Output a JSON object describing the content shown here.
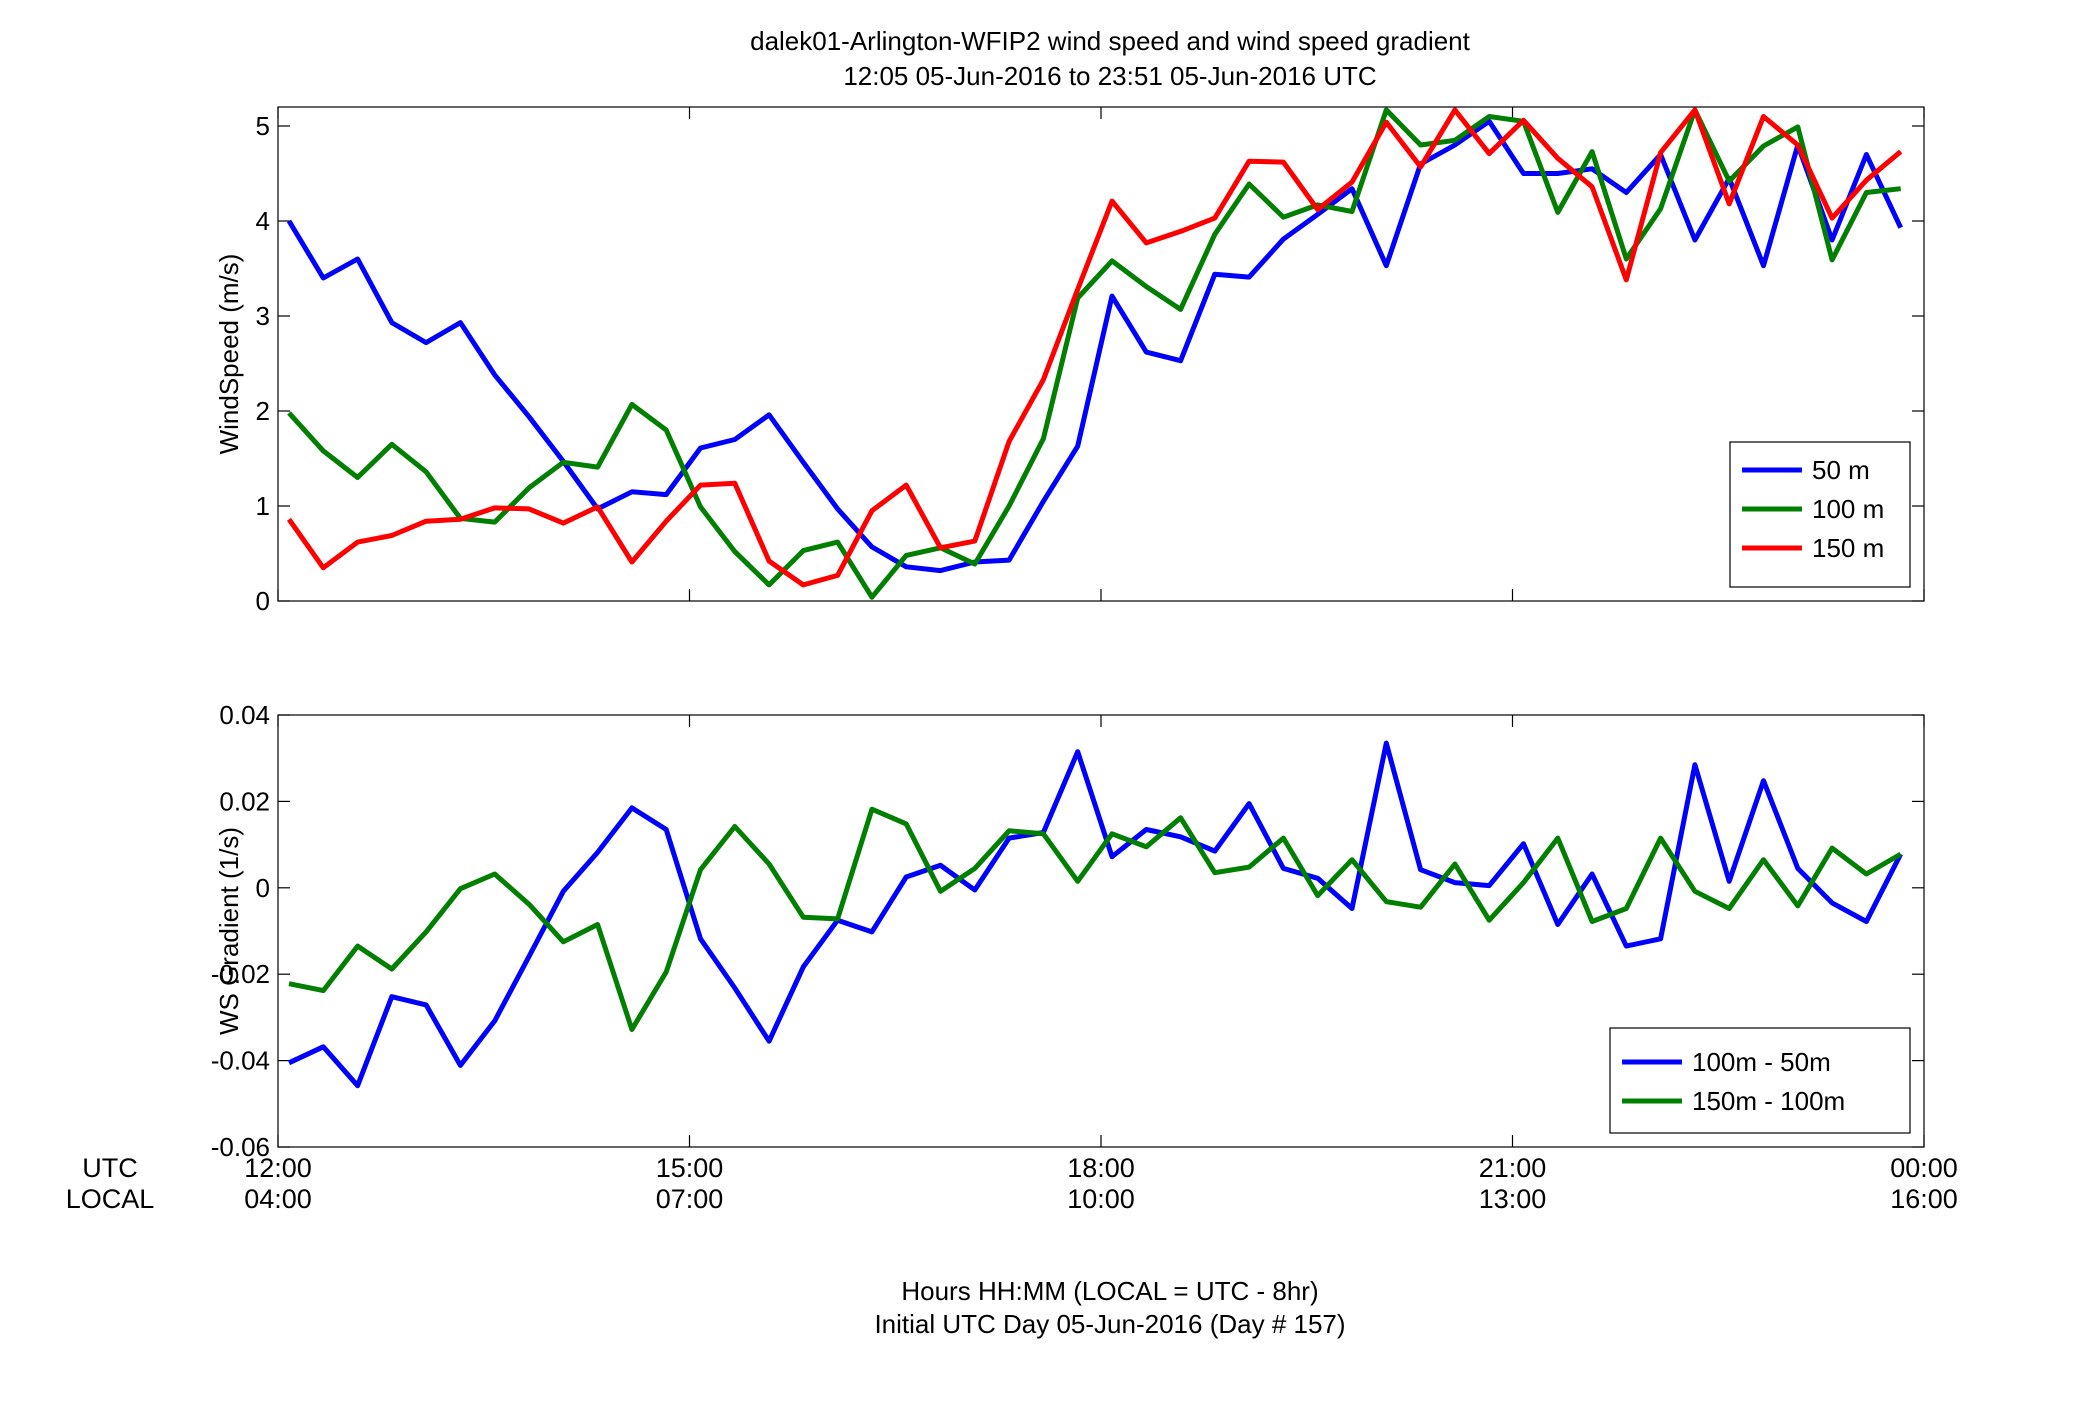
{
  "figure": {
    "title_line1": "dalek01-Arlington-WFIP2  wind speed and wind speed gradient",
    "title_line2": "12:05 05-Jun-2016 to 23:51 05-Jun-2016  UTC",
    "xlabel_line1": "Hours HH:MM  (LOCAL = UTC - 8hr)",
    "xlabel_line2": "Initial UTC Day 05-Jun-2016 (Day # 157)",
    "utc_label": "UTC",
    "local_label": "LOCAL",
    "utc_ticks": [
      "12:00",
      "15:00",
      "18:00",
      "21:00",
      "00:00"
    ],
    "local_ticks": [
      "04:00",
      "07:00",
      "10:00",
      "13:00",
      "16:00"
    ]
  },
  "chart_data": [
    {
      "type": "line",
      "ylabel": "WindSpeed (m/s)",
      "xlim": [
        12.0,
        24.0
      ],
      "ylim": [
        0,
        5.2
      ],
      "yticks": [
        0,
        1,
        2,
        3,
        4,
        5
      ],
      "ytick_labels": [
        "0",
        "1",
        "2",
        "3",
        "4",
        "5"
      ],
      "legend_position": "lower-right",
      "x": [
        12.08,
        12.33,
        12.58,
        12.83,
        13.08,
        13.33,
        13.58,
        13.83,
        14.08,
        14.33,
        14.58,
        14.83,
        15.08,
        15.33,
        15.58,
        15.83,
        16.08,
        16.33,
        16.58,
        16.83,
        17.08,
        17.33,
        17.58,
        17.83,
        18.08,
        18.33,
        18.58,
        18.83,
        19.08,
        19.33,
        19.58,
        19.83,
        20.08,
        20.33,
        20.58,
        20.83,
        21.08,
        21.33,
        21.58,
        21.83,
        22.08,
        22.33,
        22.58,
        22.83,
        23.08,
        23.33,
        23.58,
        23.83
      ],
      "series": [
        {
          "name": "50 m",
          "color": "#0000ff",
          "values": [
            4.0,
            3.4,
            3.6,
            2.93,
            2.72,
            2.93,
            2.38,
            1.94,
            1.47,
            0.97,
            1.15,
            1.12,
            1.61,
            1.7,
            1.96,
            1.46,
            0.97,
            0.57,
            0.36,
            0.32,
            0.41,
            0.43,
            1.05,
            1.63,
            3.21,
            2.62,
            2.53,
            3.44,
            3.41,
            3.81,
            4.07,
            4.34,
            3.53,
            4.6,
            4.8,
            5.05,
            4.5,
            4.5,
            4.55,
            4.3,
            4.7,
            3.8,
            4.45,
            3.53,
            4.8,
            3.8,
            4.7,
            3.93
          ]
        },
        {
          "name": "100 m",
          "color": "#007f00",
          "values": [
            1.98,
            1.58,
            1.3,
            1.65,
            1.36,
            0.87,
            0.83,
            1.19,
            1.46,
            1.41,
            2.07,
            1.8,
            0.99,
            0.52,
            0.17,
            0.53,
            0.62,
            0.04,
            0.48,
            0.56,
            0.39,
            1.0,
            1.71,
            3.19,
            3.58,
            3.31,
            3.07,
            3.86,
            4.39,
            4.04,
            4.17,
            4.1,
            5.17,
            4.8,
            4.85,
            5.1,
            5.05,
            4.09,
            4.73,
            3.6,
            4.13,
            5.17,
            4.42,
            4.79,
            4.99,
            3.59,
            4.3,
            4.34
          ]
        },
        {
          "name": "150 m",
          "color": "#ff0000",
          "values": [
            0.86,
            0.35,
            0.62,
            0.69,
            0.84,
            0.86,
            0.98,
            0.97,
            0.82,
            0.99,
            0.41,
            0.84,
            1.22,
            1.24,
            0.42,
            0.17,
            0.27,
            0.95,
            1.22,
            0.56,
            0.63,
            1.68,
            2.33,
            3.28,
            4.21,
            3.77,
            3.89,
            4.03,
            4.63,
            4.62,
            4.12,
            4.41,
            5.04,
            4.57,
            5.17,
            4.71,
            5.06,
            4.66,
            4.36,
            3.38,
            4.72,
            5.17,
            4.18,
            5.1,
            4.8,
            4.03,
            4.43,
            4.73
          ]
        }
      ]
    },
    {
      "type": "line",
      "ylabel": "WS Gradient (1/s)",
      "xlim": [
        12.0,
        24.0
      ],
      "ylim": [
        -0.06,
        0.04
      ],
      "yticks": [
        -0.06,
        -0.04,
        -0.02,
        0,
        0.02,
        0.04
      ],
      "ytick_labels": [
        "-0.06",
        "-0.04",
        "-0.02",
        "0",
        "0.02",
        "0.04"
      ],
      "legend_position": "lower-right",
      "x": [
        12.08,
        12.33,
        12.58,
        12.83,
        13.08,
        13.33,
        13.58,
        13.83,
        14.08,
        14.33,
        14.58,
        14.83,
        15.08,
        15.33,
        15.58,
        15.83,
        16.08,
        16.33,
        16.58,
        16.83,
        17.08,
        17.33,
        17.58,
        17.83,
        18.08,
        18.33,
        18.58,
        18.83,
        19.08,
        19.33,
        19.58,
        19.83,
        20.08,
        20.33,
        20.58,
        20.83,
        21.08,
        21.33,
        21.58,
        21.83,
        22.08,
        22.33,
        22.58,
        22.83,
        23.08,
        23.33,
        23.58,
        23.83
      ],
      "series": [
        {
          "name": "100m - 50m",
          "color": "#0000ff",
          "values": [
            -0.0405,
            -0.0368,
            -0.0458,
            -0.0252,
            -0.0271,
            -0.0411,
            -0.0308,
            -0.0159,
            -0.0008,
            0.0082,
            0.0185,
            0.0135,
            -0.0118,
            -0.0232,
            -0.0355,
            -0.0183,
            -0.0075,
            -0.0102,
            0.0025,
            0.0052,
            -0.0005,
            0.0115,
            0.0128,
            0.0315,
            0.0072,
            0.0135,
            0.0118,
            0.0085,
            0.0195,
            0.0045,
            0.0022,
            -0.0048,
            0.0335,
            0.0042,
            0.0012,
            0.0005,
            0.0102,
            -0.0085,
            0.0032,
            -0.0135,
            -0.0118,
            0.0285,
            0.0015,
            0.0248,
            0.0045,
            -0.0035,
            -0.0078,
            0.0078
          ]
        },
        {
          "name": "150m - 100m",
          "color": "#007f00",
          "values": [
            -0.0222,
            -0.0238,
            -0.0135,
            -0.0188,
            -0.0102,
            -0.0002,
            0.0032,
            -0.0038,
            -0.0125,
            -0.0085,
            -0.0328,
            -0.0195,
            0.0042,
            0.0142,
            0.0055,
            -0.0068,
            -0.0072,
            0.0182,
            0.0148,
            -0.0008,
            0.0045,
            0.0132,
            0.0125,
            0.0015,
            0.0125,
            0.0095,
            0.0162,
            0.0035,
            0.0048,
            0.0115,
            -0.0018,
            0.0065,
            -0.0032,
            -0.0045,
            0.0055,
            -0.0075,
            0.0012,
            0.0115,
            -0.0078,
            -0.0048,
            0.0115,
            -0.0008,
            -0.0048,
            0.0065,
            -0.0042,
            0.0092,
            0.0032,
            0.0078
          ]
        }
      ]
    }
  ]
}
